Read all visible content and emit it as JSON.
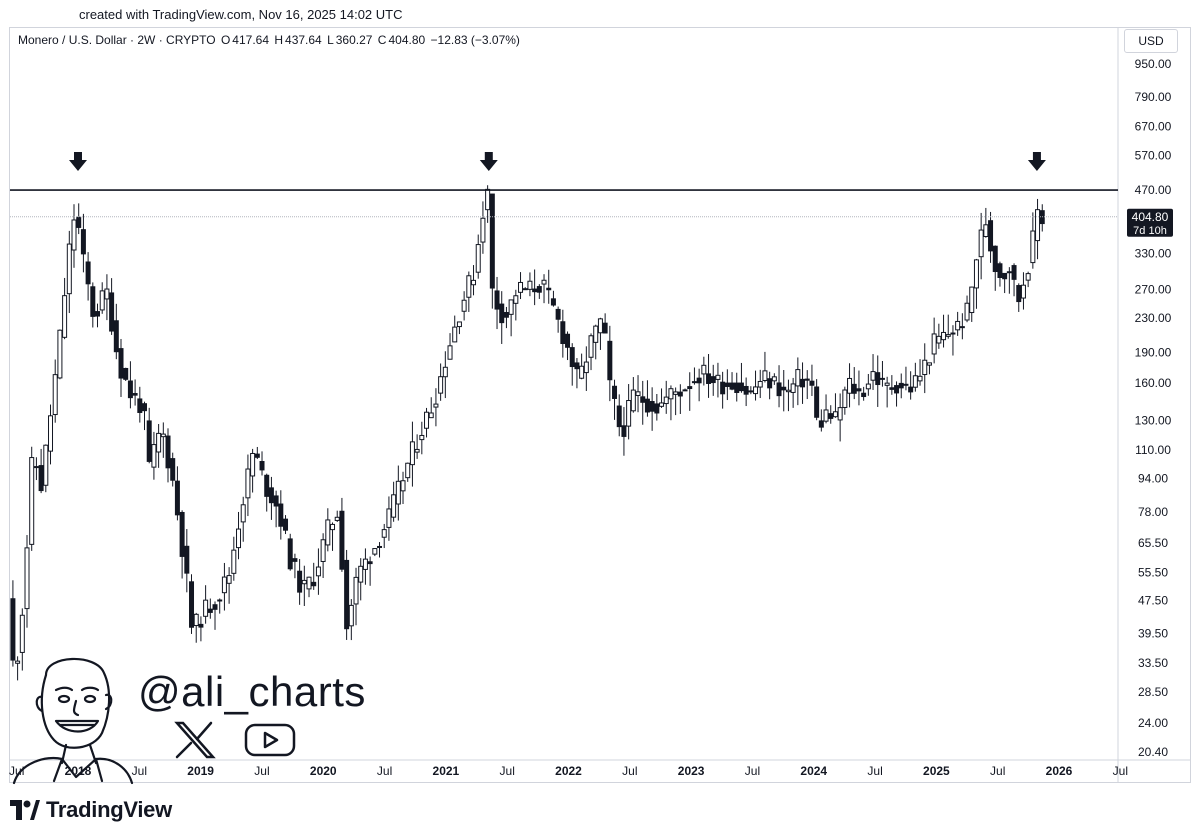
{
  "header": {
    "caption": "created with TradingView.com, Nov 16, 2025 14:02 UTC"
  },
  "legend": {
    "title": "Monero / U.S. Dollar · 2W · CRYPTO",
    "open_label": "O",
    "open": "417.64",
    "high_label": "H",
    "high": "437.64",
    "low_label": "L",
    "low": "360.27",
    "close_label": "C",
    "close": "404.80",
    "change": "−12.83 (−3.07%)"
  },
  "currency": "USD",
  "price_tag": {
    "price": "404.80",
    "countdown": "7d 10h"
  },
  "watermark": {
    "handle": "@ali_charts"
  },
  "footer": {
    "brand": "TradingView"
  },
  "icons": [
    "x-logo-icon",
    "youtube-icon",
    "tradingview-logo-icon",
    "down-arrow-icon",
    "avatar-illustration"
  ],
  "colors": {
    "candle": "#131722",
    "background": "#ffffff",
    "grid": "#d1d4dc"
  },
  "chart_data": {
    "type": "candlestick",
    "scale": "log",
    "interval": "2W",
    "yaxis_ticks": [
      950,
      790,
      670,
      570,
      470,
      330,
      270,
      230,
      190,
      160,
      130,
      110,
      94,
      78,
      65.5,
      55.5,
      47.5,
      39.5,
      33.5,
      28.5,
      24,
      20.4
    ],
    "yaxis_tick_labels": [
      "950.00",
      "790.00",
      "670.00",
      "570.00",
      "470.00",
      "330.00",
      "270.00",
      "230.00",
      "190.00",
      "160.00",
      "130.00",
      "110.00",
      "94.00",
      "78.00",
      "65.50",
      "55.50",
      "47.50",
      "39.50",
      "33.50",
      "28.50",
      "24.00",
      "20.40"
    ],
    "xaxis_ticks": [
      {
        "label": "Jul",
        "x": 2017.5
      },
      {
        "label": "2018",
        "x": 2018.0
      },
      {
        "label": "Jul",
        "x": 2018.5
      },
      {
        "label": "2019",
        "x": 2019.0
      },
      {
        "label": "Jul",
        "x": 2019.5
      },
      {
        "label": "2020",
        "x": 2020.0
      },
      {
        "label": "Jul",
        "x": 2020.5
      },
      {
        "label": "2021",
        "x": 2021.0
      },
      {
        "label": "Jul",
        "x": 2021.5
      },
      {
        "label": "2022",
        "x": 2022.0
      },
      {
        "label": "Jul",
        "x": 2022.5
      },
      {
        "label": "2023",
        "x": 2023.0
      },
      {
        "label": "Jul",
        "x": 2023.5
      },
      {
        "label": "2024",
        "x": 2024.0
      },
      {
        "label": "Jul",
        "x": 2024.5
      },
      {
        "label": "2025",
        "x": 2025.0
      },
      {
        "label": "Jul",
        "x": 2025.5
      },
      {
        "label": "2026",
        "x": 2026.0
      },
      {
        "label": "Jul",
        "x": 2026.5
      }
    ],
    "resistance_level": 470,
    "current_price_line": 404.8,
    "annotations": [
      {
        "type": "down-arrow",
        "x": 2018.0,
        "price": 470
      },
      {
        "type": "down-arrow",
        "x": 2021.35,
        "price": 490
      },
      {
        "type": "down-arrow",
        "x": 2025.82,
        "price": 470
      }
    ],
    "price_path": [
      [
        2017.45,
        48
      ],
      [
        2017.5,
        30
      ],
      [
        2017.58,
        50
      ],
      [
        2017.65,
        110
      ],
      [
        2017.72,
        90
      ],
      [
        2017.85,
        180
      ],
      [
        2017.95,
        340
      ],
      [
        2018.0,
        430
      ],
      [
        2018.05,
        330
      ],
      [
        2018.15,
        230
      ],
      [
        2018.25,
        270
      ],
      [
        2018.35,
        180
      ],
      [
        2018.45,
        150
      ],
      [
        2018.55,
        140
      ],
      [
        2018.6,
        100
      ],
      [
        2018.7,
        125
      ],
      [
        2018.8,
        90
      ],
      [
        2018.9,
        55
      ],
      [
        2018.95,
        40
      ],
      [
        2019.05,
        45
      ],
      [
        2019.15,
        48
      ],
      [
        2019.25,
        55
      ],
      [
        2019.35,
        80
      ],
      [
        2019.45,
        110
      ],
      [
        2019.55,
        90
      ],
      [
        2019.65,
        80
      ],
      [
        2019.75,
        60
      ],
      [
        2019.85,
        50
      ],
      [
        2019.95,
        55
      ],
      [
        2020.05,
        70
      ],
      [
        2020.15,
        80
      ],
      [
        2020.2,
        40
      ],
      [
        2020.3,
        55
      ],
      [
        2020.45,
        65
      ],
      [
        2020.55,
        75
      ],
      [
        2020.7,
        100
      ],
      [
        2020.8,
        120
      ],
      [
        2020.9,
        140
      ],
      [
        2020.95,
        155
      ],
      [
        2021.05,
        200
      ],
      [
        2021.15,
        250
      ],
      [
        2021.25,
        300
      ],
      [
        2021.32,
        420
      ],
      [
        2021.36,
        460
      ],
      [
        2021.4,
        260
      ],
      [
        2021.5,
        230
      ],
      [
        2021.6,
        270
      ],
      [
        2021.7,
        270
      ],
      [
        2021.8,
        280
      ],
      [
        2021.9,
        240
      ],
      [
        2022.0,
        200
      ],
      [
        2022.1,
        160
      ],
      [
        2022.2,
        200
      ],
      [
        2022.3,
        230
      ],
      [
        2022.35,
        160
      ],
      [
        2022.45,
        120
      ],
      [
        2022.55,
        150
      ],
      [
        2022.65,
        145
      ],
      [
        2022.75,
        140
      ],
      [
        2022.85,
        150
      ],
      [
        2022.95,
        155
      ],
      [
        2023.1,
        170
      ],
      [
        2023.25,
        160
      ],
      [
        2023.4,
        160
      ],
      [
        2023.5,
        150
      ],
      [
        2023.6,
        165
      ],
      [
        2023.7,
        160
      ],
      [
        2023.8,
        150
      ],
      [
        2023.9,
        165
      ],
      [
        2024.0,
        160
      ],
      [
        2024.05,
        125
      ],
      [
        2024.12,
        135
      ],
      [
        2024.2,
        130
      ],
      [
        2024.3,
        160
      ],
      [
        2024.4,
        150
      ],
      [
        2024.5,
        170
      ],
      [
        2024.6,
        155
      ],
      [
        2024.7,
        160
      ],
      [
        2024.8,
        155
      ],
      [
        2024.9,
        170
      ],
      [
        2025.0,
        200
      ],
      [
        2025.1,
        210
      ],
      [
        2025.2,
        220
      ],
      [
        2025.28,
        240
      ],
      [
        2025.35,
        330
      ],
      [
        2025.42,
        400
      ],
      [
        2025.48,
        320
      ],
      [
        2025.55,
        290
      ],
      [
        2025.62,
        310
      ],
      [
        2025.68,
        250
      ],
      [
        2025.75,
        300
      ],
      [
        2025.8,
        340
      ],
      [
        2025.83,
        420
      ],
      [
        2025.86,
        417.64
      ],
      [
        2025.88,
        404.8
      ]
    ]
  }
}
